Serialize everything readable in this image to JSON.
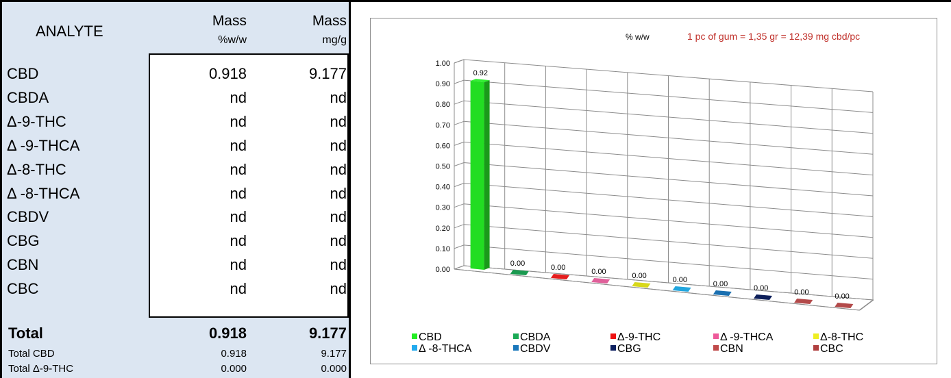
{
  "table": {
    "header": {
      "analyte": "ANALYTE",
      "col1_top": "Mass",
      "col1_unit": "%w/w",
      "col2_top": "Mass",
      "col2_unit": "mg/g"
    },
    "rows": [
      {
        "name": "CBD",
        "pct": "0.918",
        "mg": "9.177"
      },
      {
        "name": "CBDA",
        "pct": "nd",
        "mg": "nd"
      },
      {
        "name": "Δ-9-THC",
        "pct": "nd",
        "mg": "nd"
      },
      {
        "name": "Δ -9-THCA",
        "pct": "nd",
        "mg": "nd"
      },
      {
        "name": "Δ-8-THC",
        "pct": "nd",
        "mg": "nd"
      },
      {
        "name": "Δ -8-THCA",
        "pct": "nd",
        "mg": "nd"
      },
      {
        "name": "CBDV",
        "pct": "nd",
        "mg": "nd"
      },
      {
        "name": "CBG",
        "pct": "nd",
        "mg": "nd"
      },
      {
        "name": "CBN",
        "pct": "nd",
        "mg": "nd"
      },
      {
        "name": "CBC",
        "pct": "nd",
        "mg": "nd"
      }
    ],
    "total": {
      "name": "Total",
      "pct": "0.918",
      "mg": "9.177"
    },
    "total_cbd": {
      "name": "Total CBD",
      "pct": "0.918",
      "mg": "9.177"
    },
    "total_thc": {
      "name": "Total Δ-9-THC",
      "pct": "0.000",
      "mg": "0.000"
    }
  },
  "chart_data": {
    "type": "bar",
    "title": "% w/w",
    "annotation": "1 pc of gum = 1,35 gr = 12,39 mg cbd/pc",
    "categories": [
      "CBD",
      "CBDA",
      "Δ-9-THC",
      "Δ -9-THCA",
      "Δ-8-THC",
      "Δ -8-THCA",
      "CBDV",
      "CBG",
      "CBN",
      "CBC"
    ],
    "values": [
      0.92,
      0.0,
      0.0,
      0.0,
      0.0,
      0.0,
      0.0,
      0.0,
      0.0,
      0.0
    ],
    "data_labels": [
      "0.92",
      "0.00",
      "0.00",
      "0.00",
      "0.00",
      "0.00",
      "0.00",
      "0.00",
      "0.00",
      "0.00"
    ],
    "colors": [
      "#22dd22",
      "#1a9a50",
      "#e51d1d",
      "#e0609a",
      "#d8d81a",
      "#22a6de",
      "#1a6fb0",
      "#0d1f5a",
      "#b34a4a",
      "#b34a4a"
    ],
    "legend_colors": [
      "#22ee22",
      "#1aaa55",
      "#ee1111",
      "#ee5a9a",
      "#eeee22",
      "#22aaee",
      "#1a77bb",
      "#0d2060",
      "#c04a4a",
      "#b04040"
    ],
    "y_ticks": [
      "0.00",
      "0.10",
      "0.20",
      "0.30",
      "0.40",
      "0.50",
      "0.60",
      "0.70",
      "0.80",
      "0.90",
      "1.00"
    ],
    "ylim": [
      0,
      1
    ],
    "legend": "bottom",
    "grid": true,
    "annotation_color": "#c0302a"
  }
}
